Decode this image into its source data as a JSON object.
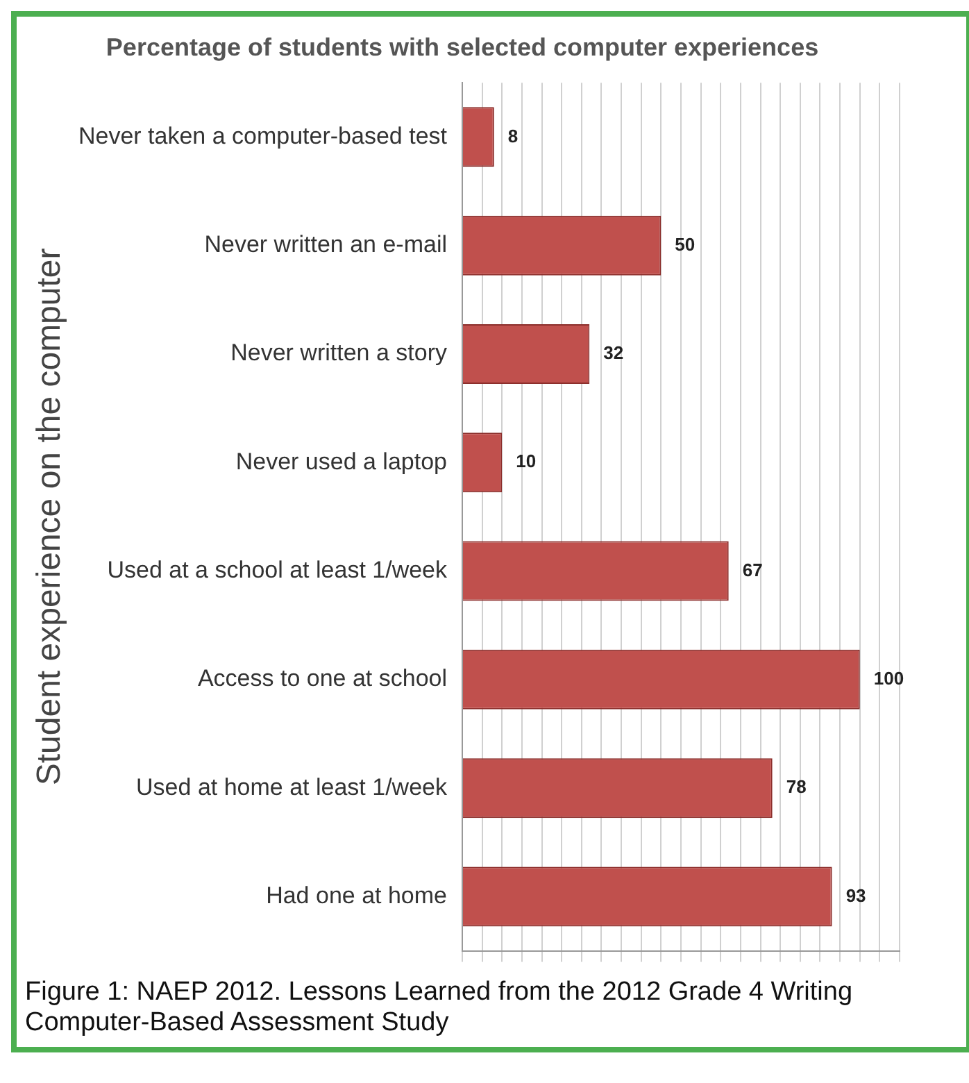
{
  "chart_data": {
    "type": "bar",
    "orientation": "horizontal",
    "title": "Percentage of students with selected computer experiences",
    "ylabel": "Student experience on the computer",
    "categories": [
      "Never taken a computer-based test",
      "Never written an e-mail",
      "Never written a story",
      "Never used a laptop",
      "Used at a school at least 1/week",
      "Access to one at school",
      "Used at home at least 1/week",
      "Had one at home"
    ],
    "values": [
      8,
      50,
      32,
      10,
      67,
      100,
      78,
      93
    ],
    "color": "#c0504d",
    "data_labels": true,
    "xlim": [
      0,
      110
    ],
    "xticks": [
      {
        "value": 0,
        "label": null
      },
      {
        "value": 5,
        "label": null
      },
      {
        "value": 10,
        "label": null
      },
      {
        "value": 15,
        "label": null
      },
      {
        "value": 20,
        "label": null
      },
      {
        "value": 25,
        "label": null
      },
      {
        "value": 30,
        "label": null
      },
      {
        "value": 35,
        "label": null
      },
      {
        "value": 40,
        "label": null
      },
      {
        "value": 45,
        "label": null
      },
      {
        "value": 50,
        "label": null
      },
      {
        "value": 55,
        "label": null
      },
      {
        "value": 60,
        "label": null
      },
      {
        "value": 65,
        "label": null
      },
      {
        "value": 70,
        "label": null
      },
      {
        "value": 75,
        "label": null
      },
      {
        "value": 80,
        "label": null
      },
      {
        "value": 85,
        "label": null
      },
      {
        "value": 90,
        "label": null
      },
      {
        "value": 95,
        "label": null
      },
      {
        "value": 100,
        "label": null
      },
      {
        "value": 105,
        "label": null
      },
      {
        "value": 110,
        "label": null
      }
    ],
    "grid": "x",
    "tick_labels": "y",
    "legend": false,
    "annotations": [
      "Figure 1: NAEP 2012. Lessons Learned from the 2012 Grade 4 Writing Computer-Based Assessment Study"
    ]
  }
}
